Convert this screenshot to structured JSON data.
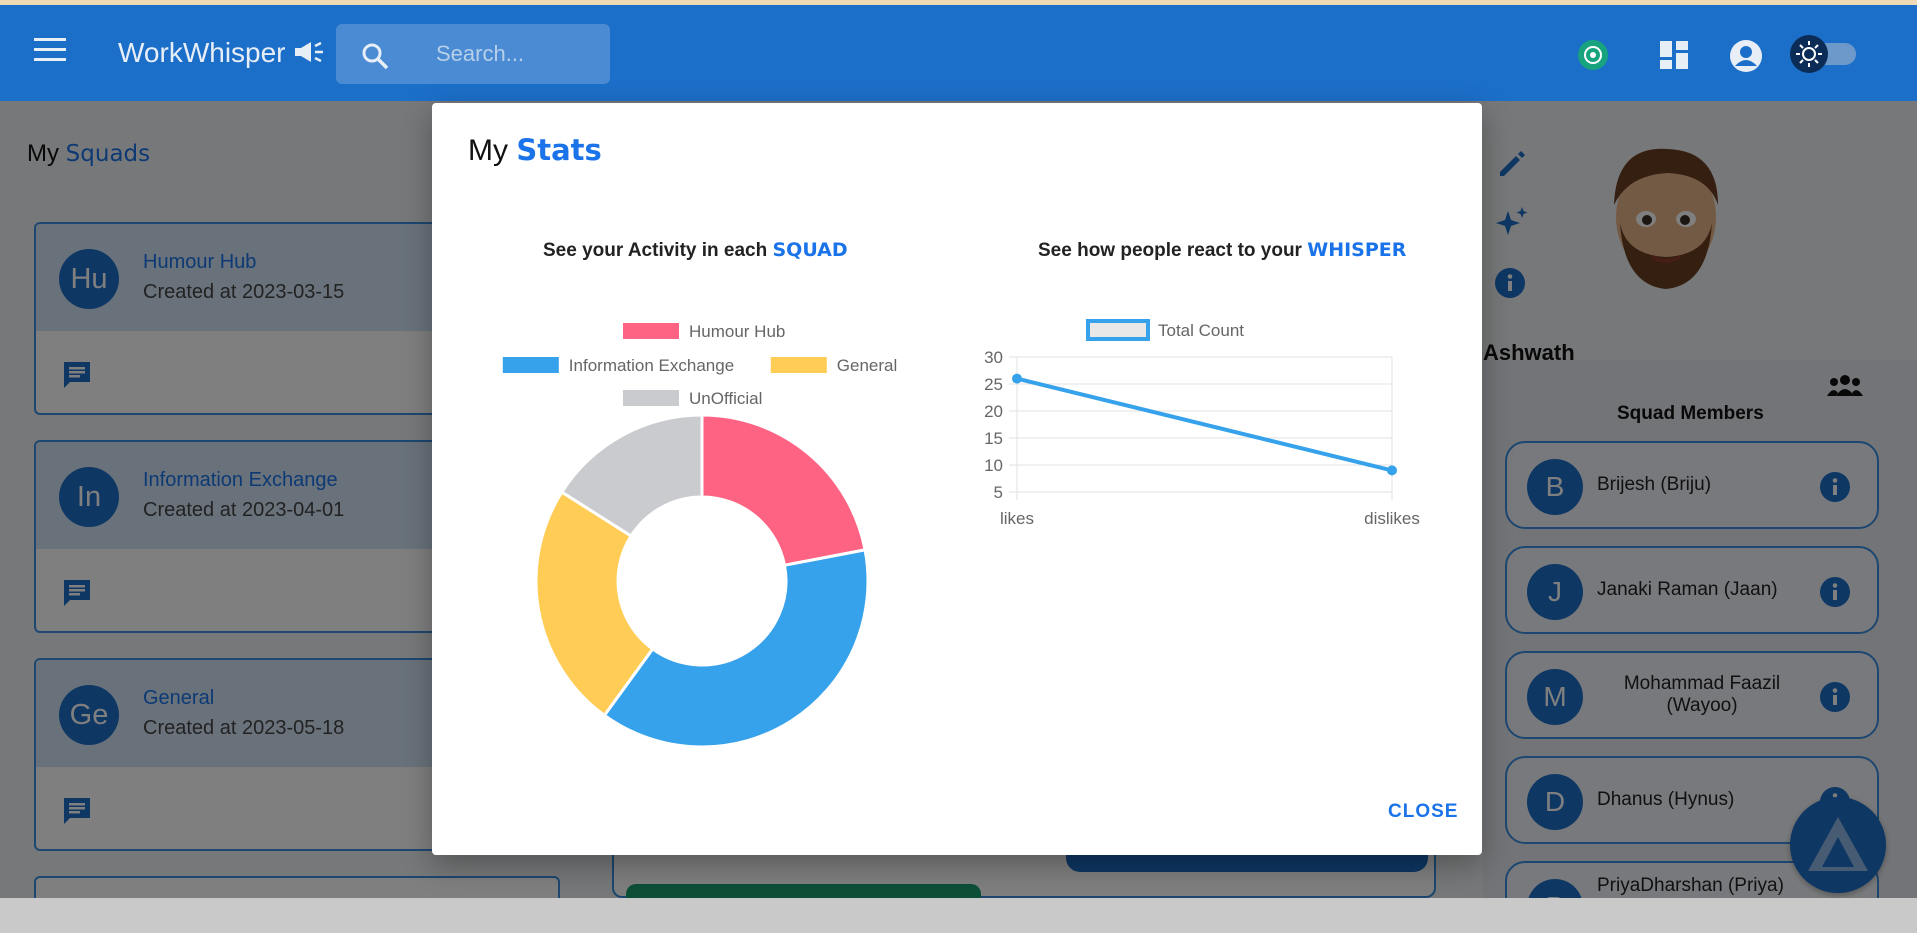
{
  "app": {
    "title": "WorkWhisper"
  },
  "search": {
    "placeholder": "Search..."
  },
  "sidebar": {
    "title_prefix": "My",
    "title_highlight": "Squads",
    "squads": [
      {
        "initials": "Hu",
        "name": "Humour Hub",
        "created": "Created at 2023-03-15"
      },
      {
        "initials": "In",
        "name": "Information Exchange",
        "created": "Created at 2023-04-01"
      },
      {
        "initials": "Ge",
        "name": "General",
        "created": "Created at 2023-05-18"
      }
    ]
  },
  "profile": {
    "name": "Ashwath",
    "members_title": "Squad Members",
    "members": [
      {
        "initial": "B",
        "name": "Brijesh (Briju)"
      },
      {
        "initial": "J",
        "name": "Janaki Raman (Jaan)"
      },
      {
        "initial": "M",
        "name": "Mohammad Faazil (Wayoo)"
      },
      {
        "initial": "D",
        "name": "Dhanus (Hynus)"
      },
      {
        "initial": "P",
        "name": "PriyaDharshan (Priya)"
      }
    ]
  },
  "dialog": {
    "title_prefix": "My",
    "title_highlight": "Stats",
    "chart1_heading": "See your Activity in each",
    "chart1_highlight": "SQUAD",
    "chart2_heading": "See how people react to your",
    "chart2_highlight": "WHISPER",
    "close_label": "CLOSE"
  },
  "colors": {
    "primary": "#1c6fc9",
    "accent": "#1a73e8"
  },
  "chart_data": [
    {
      "type": "pie",
      "variant": "doughnut",
      "categories": [
        "Humour Hub",
        "Information Exchange",
        "General",
        "UnOfficial"
      ],
      "values": [
        22,
        38,
        24,
        16
      ],
      "colors": [
        "#ff6384",
        "#36a2eb",
        "#ffcd56",
        "#c9cbcf"
      ],
      "legend": "top"
    },
    {
      "type": "line",
      "categories": [
        "likes",
        "dislikes"
      ],
      "series": [
        {
          "name": "Total Count",
          "values": [
            26,
            9
          ]
        }
      ],
      "ylim": [
        5,
        30
      ],
      "yticks": [
        5,
        10,
        15,
        20,
        25,
        30
      ],
      "grid": true,
      "legend": "top",
      "color": "#36a2eb"
    }
  ]
}
